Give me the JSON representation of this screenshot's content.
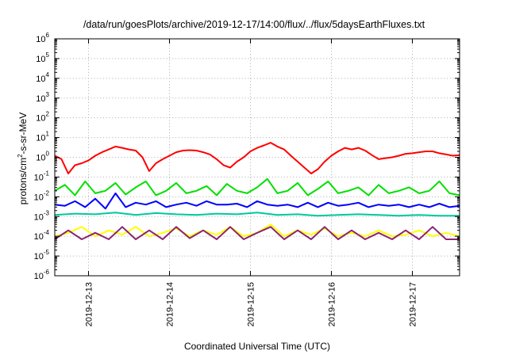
{
  "chart_data": {
    "type": "line",
    "title": "/data/run/goesPlots/archive/2019-12-17/14:00/flux/../flux/5daysEarthFluxes.txt",
    "xlabel": "Coordinated Universal Time (UTC)",
    "ylabel": {
      "base": "protons/cm",
      "sup": "2",
      "rest": "-s-sr-MeV"
    },
    "y_scale": "log",
    "ylim": [
      1e-06,
      1000000.0
    ],
    "y_ticks": [
      {
        "value": 1e-06,
        "base": "10",
        "exp": "-6"
      },
      {
        "value": 1e-05,
        "base": "10",
        "exp": "-5"
      },
      {
        "value": 0.0001,
        "base": "10",
        "exp": "-4"
      },
      {
        "value": 0.001,
        "base": "10",
        "exp": "-3"
      },
      {
        "value": 0.01,
        "base": "10",
        "exp": "-2"
      },
      {
        "value": 0.1,
        "base": "10",
        "exp": "-1"
      },
      {
        "value": 1,
        "base": "10",
        "exp": "0"
      },
      {
        "value": 10,
        "base": "10",
        "exp": "1"
      },
      {
        "value": 100,
        "base": "10",
        "exp": "2"
      },
      {
        "value": 1000,
        "base": "10",
        "exp": "3"
      },
      {
        "value": 10000,
        "base": "10",
        "exp": "4"
      },
      {
        "value": 100000,
        "base": "10",
        "exp": "5"
      },
      {
        "value": 1000000,
        "base": "10",
        "exp": "6"
      }
    ],
    "x_type": "datetime",
    "xlim": [
      "2019-12-12T14:00",
      "2019-12-17T14:00"
    ],
    "x_ticks": [
      "2019-12-13",
      "2019-12-14",
      "2019-12-15",
      "2019-12-16",
      "2019-12-17"
    ],
    "grid": true,
    "legend": "none",
    "series": [
      {
        "color": "#ff0000",
        "x": [
          "2019-12-12T14:00",
          "2019-12-12T16:00",
          "2019-12-12T18:00",
          "2019-12-12T20:00",
          "2019-12-12T22:00",
          "2019-12-13T00:00",
          "2019-12-13T02:00",
          "2019-12-13T04:00",
          "2019-12-13T06:00",
          "2019-12-13T08:00",
          "2019-12-13T10:00",
          "2019-12-13T12:00",
          "2019-12-13T14:00",
          "2019-12-13T16:00",
          "2019-12-13T18:00",
          "2019-12-13T20:00",
          "2019-12-13T22:00",
          "2019-12-14T00:00",
          "2019-12-14T02:00",
          "2019-12-14T04:00",
          "2019-12-14T06:00",
          "2019-12-14T08:00",
          "2019-12-14T10:00",
          "2019-12-14T12:00",
          "2019-12-14T14:00",
          "2019-12-14T16:00",
          "2019-12-14T18:00",
          "2019-12-14T20:00",
          "2019-12-14T22:00",
          "2019-12-15T00:00",
          "2019-12-15T02:00",
          "2019-12-15T04:00",
          "2019-12-15T06:00",
          "2019-12-15T08:00",
          "2019-12-15T10:00",
          "2019-12-15T12:00",
          "2019-12-15T14:00",
          "2019-12-15T16:00",
          "2019-12-15T18:00",
          "2019-12-15T20:00",
          "2019-12-15T22:00",
          "2019-12-16T00:00",
          "2019-12-16T02:00",
          "2019-12-16T04:00",
          "2019-12-16T06:00",
          "2019-12-16T08:00",
          "2019-12-16T10:00",
          "2019-12-16T12:00",
          "2019-12-16T14:00",
          "2019-12-16T16:00",
          "2019-12-16T18:00",
          "2019-12-16T20:00",
          "2019-12-16T22:00",
          "2019-12-17T00:00",
          "2019-12-17T02:00",
          "2019-12-17T04:00",
          "2019-12-17T06:00",
          "2019-12-17T08:00",
          "2019-12-17T10:00",
          "2019-12-17T12:00",
          "2019-12-17T14:00"
        ],
        "values": [
          1.2,
          0.8,
          0.15,
          0.4,
          0.5,
          0.7,
          1.2,
          1.8,
          2.5,
          3.5,
          3.0,
          2.5,
          2.2,
          1.0,
          0.2,
          0.5,
          0.8,
          1.2,
          1.8,
          2.2,
          2.3,
          2.2,
          1.8,
          1.4,
          0.8,
          0.4,
          0.3,
          0.6,
          1.0,
          2.0,
          3.0,
          4.0,
          5.5,
          3.5,
          2.5,
          1.2,
          0.6,
          0.3,
          0.15,
          0.25,
          0.6,
          1.2,
          2.0,
          3.0,
          2.5,
          3.0,
          2.2,
          1.3,
          0.8,
          0.9,
          1.0,
          1.2,
          1.5,
          1.6,
          1.8,
          2.0,
          2.0,
          1.6,
          1.4,
          1.2,
          1.3
        ]
      },
      {
        "color": "#00e000",
        "x": [
          "2019-12-12T14:00",
          "2019-12-12T17:00",
          "2019-12-12T20:00",
          "2019-12-12T23:00",
          "2019-12-13T02:00",
          "2019-12-13T05:00",
          "2019-12-13T08:00",
          "2019-12-13T11:00",
          "2019-12-13T14:00",
          "2019-12-13T17:00",
          "2019-12-13T20:00",
          "2019-12-13T23:00",
          "2019-12-14T02:00",
          "2019-12-14T05:00",
          "2019-12-14T08:00",
          "2019-12-14T11:00",
          "2019-12-14T14:00",
          "2019-12-14T17:00",
          "2019-12-14T20:00",
          "2019-12-14T23:00",
          "2019-12-15T02:00",
          "2019-12-15T05:00",
          "2019-12-15T08:00",
          "2019-12-15T11:00",
          "2019-12-15T14:00",
          "2019-12-15T17:00",
          "2019-12-15T20:00",
          "2019-12-15T23:00",
          "2019-12-16T02:00",
          "2019-12-16T05:00",
          "2019-12-16T08:00",
          "2019-12-16T11:00",
          "2019-12-16T14:00",
          "2019-12-16T17:00",
          "2019-12-16T20:00",
          "2019-12-16T23:00",
          "2019-12-17T02:00",
          "2019-12-17T05:00",
          "2019-12-17T08:00",
          "2019-12-17T11:00",
          "2019-12-17T14:00"
        ],
        "values": [
          0.02,
          0.04,
          0.012,
          0.06,
          0.015,
          0.02,
          0.05,
          0.013,
          0.03,
          0.06,
          0.012,
          0.02,
          0.05,
          0.015,
          0.02,
          0.035,
          0.012,
          0.045,
          0.02,
          0.015,
          0.03,
          0.08,
          0.015,
          0.02,
          0.05,
          0.012,
          0.025,
          0.06,
          0.015,
          0.02,
          0.03,
          0.012,
          0.04,
          0.015,
          0.02,
          0.03,
          0.015,
          0.02,
          0.06,
          0.015,
          0.012
        ]
      },
      {
        "color": "#0000ff",
        "x": [
          "2019-12-12T14:00",
          "2019-12-12T17:00",
          "2019-12-12T20:00",
          "2019-12-12T23:00",
          "2019-12-13T02:00",
          "2019-12-13T05:00",
          "2019-12-13T08:00",
          "2019-12-13T11:00",
          "2019-12-13T14:00",
          "2019-12-13T17:00",
          "2019-12-13T20:00",
          "2019-12-13T23:00",
          "2019-12-14T02:00",
          "2019-12-14T05:00",
          "2019-12-14T08:00",
          "2019-12-14T11:00",
          "2019-12-14T14:00",
          "2019-12-14T17:00",
          "2019-12-14T20:00",
          "2019-12-14T23:00",
          "2019-12-15T02:00",
          "2019-12-15T05:00",
          "2019-12-15T08:00",
          "2019-12-15T11:00",
          "2019-12-15T14:00",
          "2019-12-15T17:00",
          "2019-12-15T20:00",
          "2019-12-15T23:00",
          "2019-12-16T02:00",
          "2019-12-16T05:00",
          "2019-12-16T08:00",
          "2019-12-16T11:00",
          "2019-12-16T14:00",
          "2019-12-16T17:00",
          "2019-12-16T20:00",
          "2019-12-16T23:00",
          "2019-12-17T02:00",
          "2019-12-17T05:00",
          "2019-12-17T08:00",
          "2019-12-17T11:00",
          "2019-12-17T14:00"
        ],
        "values": [
          0.004,
          0.0035,
          0.006,
          0.003,
          0.008,
          0.0025,
          0.015,
          0.003,
          0.005,
          0.004,
          0.006,
          0.003,
          0.004,
          0.005,
          0.0035,
          0.006,
          0.004,
          0.004,
          0.0045,
          0.003,
          0.006,
          0.004,
          0.0035,
          0.004,
          0.003,
          0.005,
          0.003,
          0.005,
          0.0035,
          0.004,
          0.005,
          0.003,
          0.004,
          0.0035,
          0.004,
          0.003,
          0.004,
          0.003,
          0.0045,
          0.003,
          0.0035
        ]
      },
      {
        "color": "#00c8a0",
        "x": [
          "2019-12-12T14:00",
          "2019-12-12T20:00",
          "2019-12-13T02:00",
          "2019-12-13T08:00",
          "2019-12-13T14:00",
          "2019-12-13T20:00",
          "2019-12-14T02:00",
          "2019-12-14T08:00",
          "2019-12-14T14:00",
          "2019-12-14T20:00",
          "2019-12-15T02:00",
          "2019-12-15T08:00",
          "2019-12-15T14:00",
          "2019-12-15T20:00",
          "2019-12-16T02:00",
          "2019-12-16T08:00",
          "2019-12-16T14:00",
          "2019-12-16T20:00",
          "2019-12-17T02:00",
          "2019-12-17T08:00",
          "2019-12-17T14:00"
        ],
        "values": [
          0.0012,
          0.0014,
          0.0013,
          0.0016,
          0.0012,
          0.0015,
          0.0013,
          0.0012,
          0.0014,
          0.0013,
          0.0016,
          0.0012,
          0.0013,
          0.0011,
          0.0012,
          0.0013,
          0.0012,
          0.0011,
          0.0012,
          0.0011,
          0.0011
        ]
      },
      {
        "color": "#ffff00",
        "x": [
          "2019-12-12T14:00",
          "2019-12-12T18:00",
          "2019-12-12T22:00",
          "2019-12-13T02:00",
          "2019-12-13T06:00",
          "2019-12-13T10:00",
          "2019-12-13T14:00",
          "2019-12-13T18:00",
          "2019-12-13T22:00",
          "2019-12-14T02:00",
          "2019-12-14T06:00",
          "2019-12-14T10:00",
          "2019-12-14T14:00",
          "2019-12-14T18:00",
          "2019-12-14T22:00",
          "2019-12-15T02:00",
          "2019-12-15T06:00",
          "2019-12-15T10:00",
          "2019-12-15T14:00",
          "2019-12-15T18:00",
          "2019-12-15T22:00",
          "2019-12-16T02:00",
          "2019-12-16T06:00",
          "2019-12-16T10:00",
          "2019-12-16T14:00",
          "2019-12-16T18:00",
          "2019-12-16T22:00",
          "2019-12-17T02:00",
          "2019-12-17T06:00",
          "2019-12-17T10:00",
          "2019-12-17T14:00"
        ],
        "values": [
          0.0001,
          0.00015,
          0.0003,
          0.0001,
          0.0002,
          0.00012,
          0.0003,
          0.0001,
          0.00015,
          0.00025,
          0.0001,
          0.0002,
          0.00012,
          0.0003,
          0.0001,
          0.00015,
          0.0004,
          0.0001,
          0.0002,
          0.00012,
          0.00025,
          0.0001,
          0.00015,
          0.0001,
          0.0002,
          0.0001,
          0.00012,
          0.0002,
          0.0001,
          0.00015,
          0.0001
        ]
      },
      {
        "color": "#8b2570",
        "x": [
          "2019-12-12T14:00",
          "2019-12-12T18:00",
          "2019-12-12T22:00",
          "2019-12-13T02:00",
          "2019-12-13T06:00",
          "2019-12-13T10:00",
          "2019-12-13T14:00",
          "2019-12-13T18:00",
          "2019-12-13T22:00",
          "2019-12-14T02:00",
          "2019-12-14T06:00",
          "2019-12-14T10:00",
          "2019-12-14T14:00",
          "2019-12-14T18:00",
          "2019-12-14T22:00",
          "2019-12-15T02:00",
          "2019-12-15T06:00",
          "2019-12-15T10:00",
          "2019-12-15T14:00",
          "2019-12-15T18:00",
          "2019-12-15T22:00",
          "2019-12-16T02:00",
          "2019-12-16T06:00",
          "2019-12-16T10:00",
          "2019-12-16T14:00",
          "2019-12-16T18:00",
          "2019-12-16T22:00",
          "2019-12-17T02:00",
          "2019-12-17T06:00",
          "2019-12-17T10:00",
          "2019-12-17T14:00"
        ],
        "values": [
          7e-05,
          0.0002,
          7e-05,
          0.00015,
          7e-05,
          0.0003,
          7e-05,
          0.0002,
          7e-05,
          0.0003,
          8e-05,
          0.0002,
          7e-05,
          0.0003,
          7e-05,
          0.00015,
          0.0003,
          7e-05,
          0.0002,
          7e-05,
          0.0003,
          7e-05,
          0.0002,
          7e-05,
          0.00015,
          7e-05,
          0.0002,
          7e-05,
          0.0003,
          7e-05,
          7e-05
        ]
      }
    ]
  }
}
